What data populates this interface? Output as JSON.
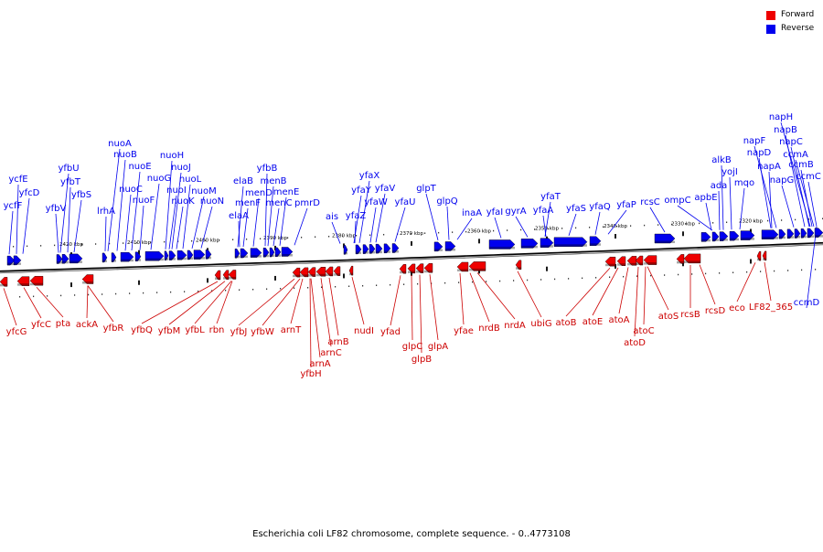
{
  "legend": {
    "forward_label": "Forward",
    "reverse_label": "Reverse",
    "forward_color": "#ee0000",
    "reverse_color": "#0000ee"
  },
  "caption": "Escherichia coli LF82 chromosome, complete sequence. - 0..4773108",
  "scale_labels": [
    "2420 kbp",
    "2410 kbp",
    "2400 kbp",
    "2390 kbp",
    "2380 kbp",
    "2370 kbp",
    "2360 kbp",
    "2350 kbp",
    "2340 kbp",
    "2330 kbp",
    "2320 kbp"
  ],
  "reverse_genes": [
    "ycfE",
    "yfcD",
    "ycfF",
    "yfbU",
    "yfbT",
    "yfbV",
    "yfbS",
    "nuoA",
    "nuoB",
    "lrhA",
    "nuoE",
    "nuoC",
    "nuoF",
    "nuoG",
    "nuoH",
    "nuoJ",
    "nuoI",
    "nuoL",
    "nuoK",
    "nuoM",
    "nuoN",
    "yfbB",
    "elaB",
    "menB",
    "menD",
    "menF",
    "menE",
    "elaA",
    "menC",
    "pmrD",
    "ais",
    "yfaX",
    "yfaY",
    "yfaV",
    "yfaZ",
    "yfaW",
    "yfaU",
    "glpT",
    "glpQ",
    "inaA",
    "yfaI",
    "gyrA",
    "yfaT",
    "yfaA",
    "yfaS",
    "yfaQ",
    "yfaP",
    "rcsC",
    "ompC",
    "alkB",
    "yojI",
    "apbE",
    "ada",
    "mqo",
    "napH",
    "napB",
    "napF",
    "napC",
    "napD",
    "napA",
    "ccmA",
    "ccmB",
    "napG",
    "ccmC",
    "ccmD"
  ],
  "forward_genes": [
    "yfcG",
    "yfcC",
    "pta",
    "ackA",
    "yfbR",
    "yfbQ",
    "yfbM",
    "yfbL",
    "rbn",
    "yfbJ",
    "yfbW",
    "arnT",
    "arnA",
    "yfbH",
    "arnB",
    "arnC",
    "nudI",
    "yfad",
    "glpC",
    "glpB",
    "glpA",
    "yfae",
    "nrdB",
    "nrdA",
    "ubiG",
    "atoB",
    "atoE",
    "atoA",
    "atoD",
    "atoC",
    "atoS",
    "rcsB",
    "rcsD",
    "eco",
    "LF82_365"
  ]
}
